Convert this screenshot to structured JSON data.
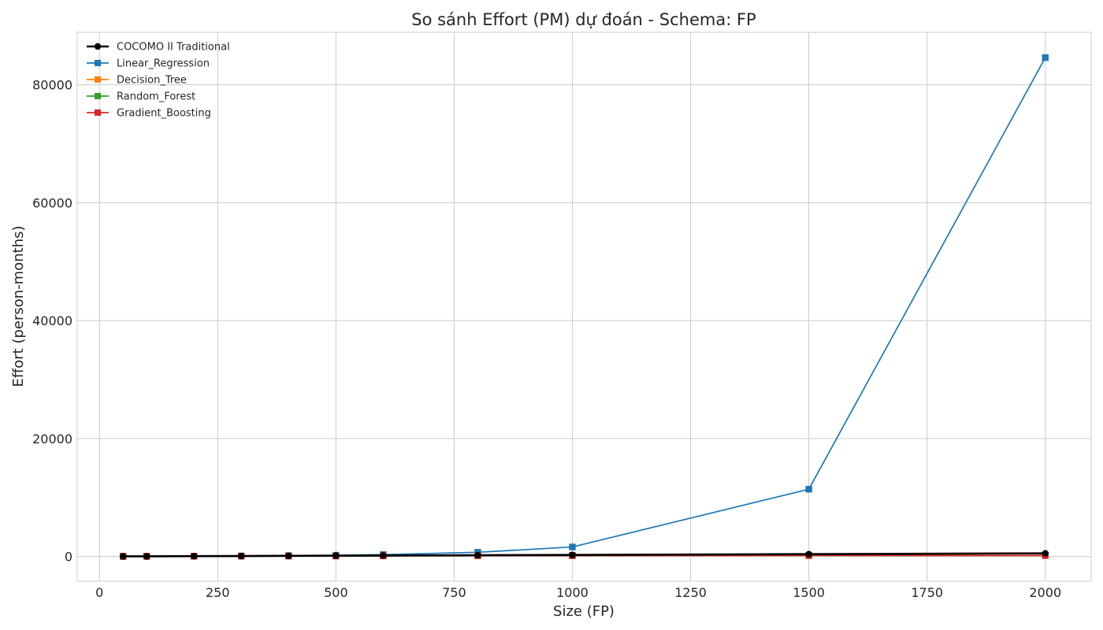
{
  "chart_data": {
    "type": "line",
    "title": "So sánh Effort (PM) dự đoán - Schema: FP",
    "xlabel": "Size (FP)",
    "ylabel": "Effort (person-months)",
    "x": [
      50,
      100,
      200,
      300,
      400,
      500,
      600,
      800,
      1000,
      1500,
      2000
    ],
    "xlim": [
      -47,
      2097
    ],
    "ylim": [
      -4200,
      88900
    ],
    "xticks": [
      0,
      250,
      500,
      750,
      1000,
      1250,
      1500,
      1750,
      2000
    ],
    "yticks": [
      0,
      20000,
      40000,
      60000,
      80000
    ],
    "grid": true,
    "legend_position": "top-left",
    "series": [
      {
        "name": "COCOMO II Traditional",
        "color": "#000000",
        "marker": "circle",
        "values": [
          10,
          20,
          45,
          70,
          95,
          125,
          150,
          200,
          255,
          385,
          520
        ]
      },
      {
        "name": "Linear_Regression",
        "color": "#1f77b4",
        "marker": "square",
        "values": [
          5,
          12,
          40,
          80,
          140,
          200,
          310,
          700,
          1600,
          11400,
          84600
        ]
      },
      {
        "name": "Decision_Tree",
        "color": "#ff7f0e",
        "marker": "square",
        "values": [
          8,
          15,
          30,
          45,
          60,
          80,
          95,
          120,
          140,
          150,
          155
        ]
      },
      {
        "name": "Random_Forest",
        "color": "#2ca02c",
        "marker": "square",
        "values": [
          8,
          15,
          30,
          45,
          60,
          80,
          95,
          120,
          140,
          150,
          155
        ]
      },
      {
        "name": "Gradient_Boosting",
        "color": "#d62728",
        "marker": "square",
        "values": [
          8,
          15,
          30,
          45,
          60,
          80,
          95,
          120,
          140,
          150,
          155
        ]
      }
    ]
  },
  "colors": {
    "grid": "#cccccc",
    "axes_border": "#cccccc",
    "text": "#262626",
    "background": "#ffffff"
  }
}
